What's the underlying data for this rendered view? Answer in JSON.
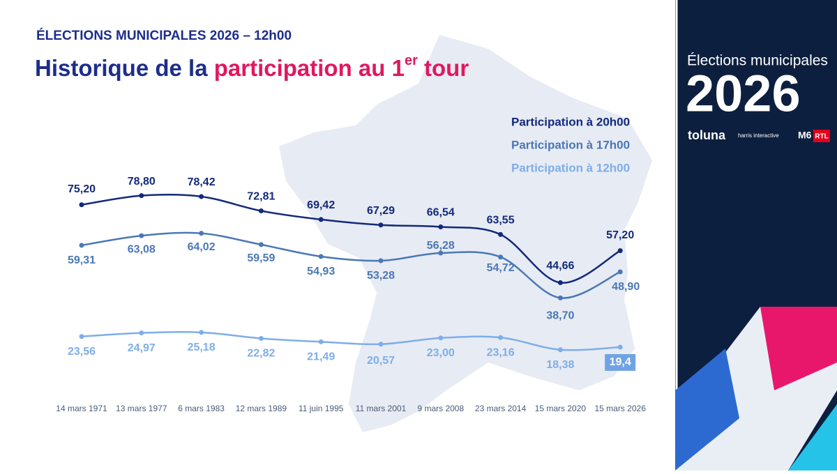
{
  "chart_data": {
    "type": "line",
    "kicker": "ÉLECTIONS MUNICIPALES 2026 – 12h00",
    "title": "Historique de la",
    "title_highlight": "participation au 1",
    "title_superscript": "er",
    "title_end": "tour",
    "categories": [
      "14 mars 1971",
      "13 mars 1977",
      "6 mars 1983",
      "12 mars 1989",
      "11 juin 1995",
      "11 mars 2001",
      "9 mars 2008",
      "23 mars 2014",
      "15 mars 2020",
      "15 mars 2026"
    ],
    "series": [
      {
        "name": "Participation à 20h00",
        "color": "#13297b",
        "values": [
          75.2,
          78.8,
          78.42,
          72.81,
          69.42,
          67.29,
          66.54,
          63.55,
          44.66,
          57.2
        ],
        "value_labels": [
          "75,20",
          "78,80",
          "78,42",
          "72,81",
          "69,42",
          "67,29",
          "66,54",
          "63,55",
          "44,66",
          "57,20"
        ]
      },
      {
        "name": "Participation à 17h00",
        "color": "#4a78b5",
        "values": [
          59.31,
          63.08,
          64.02,
          59.59,
          54.93,
          53.28,
          56.28,
          54.72,
          38.7,
          48.9
        ],
        "value_labels": [
          "59,31",
          "63,08",
          "64,02",
          "59,59",
          "54,93",
          "53,28",
          "56,28",
          "54,72",
          "38,70",
          "48,90"
        ]
      },
      {
        "name": "Participation à 12h00",
        "color": "#7eaee9",
        "values": [
          23.56,
          24.97,
          25.18,
          22.82,
          21.49,
          20.57,
          23.0,
          23.16,
          18.38,
          19.4
        ],
        "value_labels": [
          "23,56",
          "24,97",
          "25,18",
          "22,82",
          "21,49",
          "20,57",
          "23,00",
          "23,16",
          "18,38",
          "19,4"
        ]
      }
    ],
    "highlight": {
      "series": 2,
      "index": 9
    }
  },
  "sidebar": {
    "title": "Élections municipales",
    "year": "2026",
    "logos": [
      "toluna",
      "harris interactive",
      "M6",
      "RTL"
    ]
  }
}
